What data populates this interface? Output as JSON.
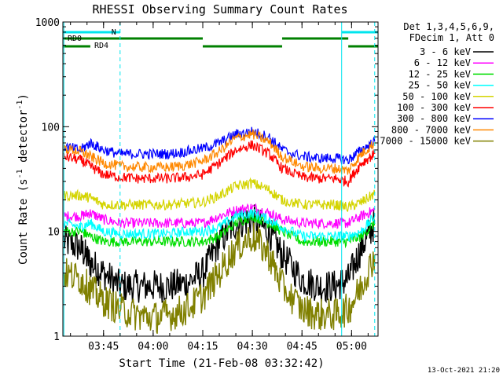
{
  "chart_data": {
    "type": "line",
    "title": "RHESSI Observing Summary Count Rates",
    "xlabel": "Start Time (21-Feb-08 03:32:42)",
    "ylabel": "Count Rate (s",
    "ylabel_sup1": "-1",
    "ylabel_mid": " detector",
    "ylabel_sup2": "-1",
    "ylabel_end": ")",
    "yscale": "log",
    "ylim": [
      1,
      1000
    ],
    "xlim": [
      "03:32:42",
      "05:08:00"
    ],
    "x_ticks": [
      "03:45",
      "04:00",
      "04:15",
      "04:30",
      "04:45",
      "05:00"
    ],
    "y_ticks": [
      "1",
      "10",
      "100",
      "1000"
    ],
    "timestamp": "13-Oct-2021 21:20",
    "legend_header": [
      "Det 1,3,4,5,6,9,",
      "FDecim 1, Att 0"
    ],
    "flags": [
      {
        "label": "N",
        "color": "#00e5ee",
        "segments": [
          [
            "03:32:42",
            "03:50"
          ],
          [
            "04:57",
            "05:08"
          ]
        ]
      },
      {
        "label": "RD0",
        "color": "#008000",
        "segments": [
          [
            "03:32:42",
            "04:15"
          ],
          [
            "04:39",
            "04:59"
          ]
        ]
      },
      {
        "label": "RD4",
        "color": "#008000",
        "segments": [
          [
            "03:32:42",
            "03:41"
          ],
          [
            "04:15",
            "04:39"
          ],
          [
            "04:59",
            "05:08"
          ]
        ]
      }
    ],
    "vlines": [
      {
        "x": "03:33",
        "color": "#00e5ee",
        "style": "solid"
      },
      {
        "x": "03:50",
        "color": "#00e5ee",
        "style": "dashed"
      },
      {
        "x": "04:57",
        "color": "#00e5ee",
        "style": "solid"
      },
      {
        "x": "05:07",
        "color": "#00e5ee",
        "style": "dashed"
      }
    ],
    "x": [
      "03:33",
      "03:38",
      "03:41",
      "03:45",
      "03:50",
      "03:55",
      "04:00",
      "04:05",
      "04:10",
      "04:15",
      "04:20",
      "04:25",
      "04:30",
      "04:35",
      "04:39",
      "04:45",
      "04:50",
      "04:55",
      "04:59",
      "05:03",
      "05:07"
    ],
    "series": [
      {
        "name": "3 - 6 keV",
        "color": "#000000",
        "values": [
          8,
          7,
          5,
          4,
          3,
          3,
          3,
          3,
          3.2,
          4,
          8,
          12,
          13,
          10,
          6,
          3.5,
          3,
          3,
          3.5,
          7,
          12
        ]
      },
      {
        "name": "6 - 12 keV",
        "color": "#ff00ff",
        "values": [
          14,
          14,
          15,
          13,
          12,
          12,
          12,
          12,
          12,
          12,
          14,
          16,
          17,
          15,
          13,
          12,
          12,
          12,
          12,
          14,
          16
        ]
      },
      {
        "name": "12 - 25 keV",
        "color": "#00dd00",
        "values": [
          10,
          10,
          9,
          8,
          8,
          8,
          8,
          8,
          8,
          8,
          9,
          12,
          14,
          12,
          10,
          8,
          8,
          8,
          8,
          9,
          12
        ]
      },
      {
        "name": "25 - 50 keV",
        "color": "#00ffff",
        "values": [
          12,
          11,
          12,
          10,
          9.5,
          9.5,
          9.5,
          9.5,
          10,
          10,
          11,
          14,
          15,
          13,
          11,
          9,
          9,
          9,
          9,
          10,
          14
        ]
      },
      {
        "name": "50 - 100 keV",
        "color": "#d4d400",
        "values": [
          22,
          22,
          21,
          18,
          18,
          18,
          18,
          18,
          18.5,
          19,
          22,
          27,
          29,
          25,
          20,
          18,
          18,
          18,
          17,
          19,
          23
        ]
      },
      {
        "name": "100 - 300 keV",
        "color": "#ff0000",
        "values": [
          52,
          48,
          42,
          35,
          33,
          32,
          32,
          32,
          33,
          35,
          45,
          60,
          67,
          55,
          40,
          33,
          32,
          32,
          30,
          45,
          55
        ]
      },
      {
        "name": "300 - 800 keV",
        "color": "#0000ff",
        "values": [
          65,
          60,
          70,
          60,
          55,
          55,
          55,
          55,
          58,
          62,
          70,
          85,
          90,
          80,
          60,
          52,
          50,
          50,
          48,
          60,
          72
        ]
      },
      {
        "name": "800 - 7000 keV",
        "color": "#ff8800",
        "values": [
          62,
          58,
          52,
          45,
          42,
          41,
          41,
          41,
          43,
          47,
          58,
          78,
          85,
          72,
          52,
          42,
          40,
          40,
          38,
          55,
          70
        ]
      },
      {
        "name": "7000 - 15000 keV",
        "color": "#808000",
        "values": [
          4,
          3.5,
          2.8,
          2.2,
          1.8,
          1.6,
          1.5,
          1.6,
          1.8,
          2.4,
          4,
          7,
          9,
          6,
          3,
          1.8,
          1.6,
          1.6,
          1.8,
          3,
          6
        ]
      }
    ]
  }
}
